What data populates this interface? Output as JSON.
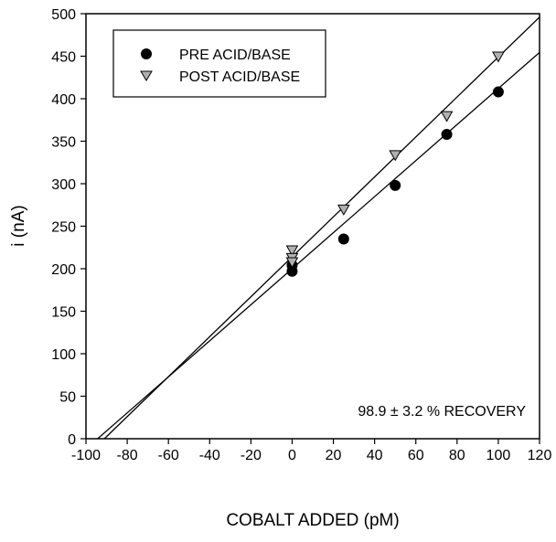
{
  "chart_data": {
    "type": "scatter",
    "title": "",
    "xlabel": "COBALT ADDED (pM)",
    "ylabel": "i (nA)",
    "xlim": [
      -100,
      120
    ],
    "ylim": [
      0,
      500
    ],
    "xticks": [
      -100,
      -80,
      -60,
      -40,
      -20,
      0,
      20,
      40,
      60,
      80,
      100,
      120
    ],
    "yticks": [
      0,
      50,
      100,
      150,
      200,
      250,
      300,
      350,
      400,
      450,
      500
    ],
    "grid": false,
    "legend_position": "top-left",
    "series": [
      {
        "name": "PRE ACID/BASE",
        "marker": "filled-circle",
        "color": "#000000",
        "points": [
          [
            0,
            197
          ],
          [
            0,
            204
          ],
          [
            25,
            235
          ],
          [
            50,
            298
          ],
          [
            75,
            358
          ],
          [
            100,
            408
          ]
        ],
        "fit": {
          "slope": 2.12,
          "intercept": 200
        }
      },
      {
        "name": "POST ACID/BASE",
        "marker": "open-triangle-down",
        "color": "#b0b0b0",
        "points": [
          [
            0,
            222
          ],
          [
            0,
            213
          ],
          [
            0,
            208
          ],
          [
            25,
            270
          ],
          [
            50,
            334
          ],
          [
            75,
            380
          ],
          [
            100,
            450
          ]
        ],
        "fit": {
          "slope": 2.35,
          "intercept": 214
        }
      }
    ],
    "annotations": [
      "98.9 ± 3.2 % RECOVERY"
    ]
  }
}
